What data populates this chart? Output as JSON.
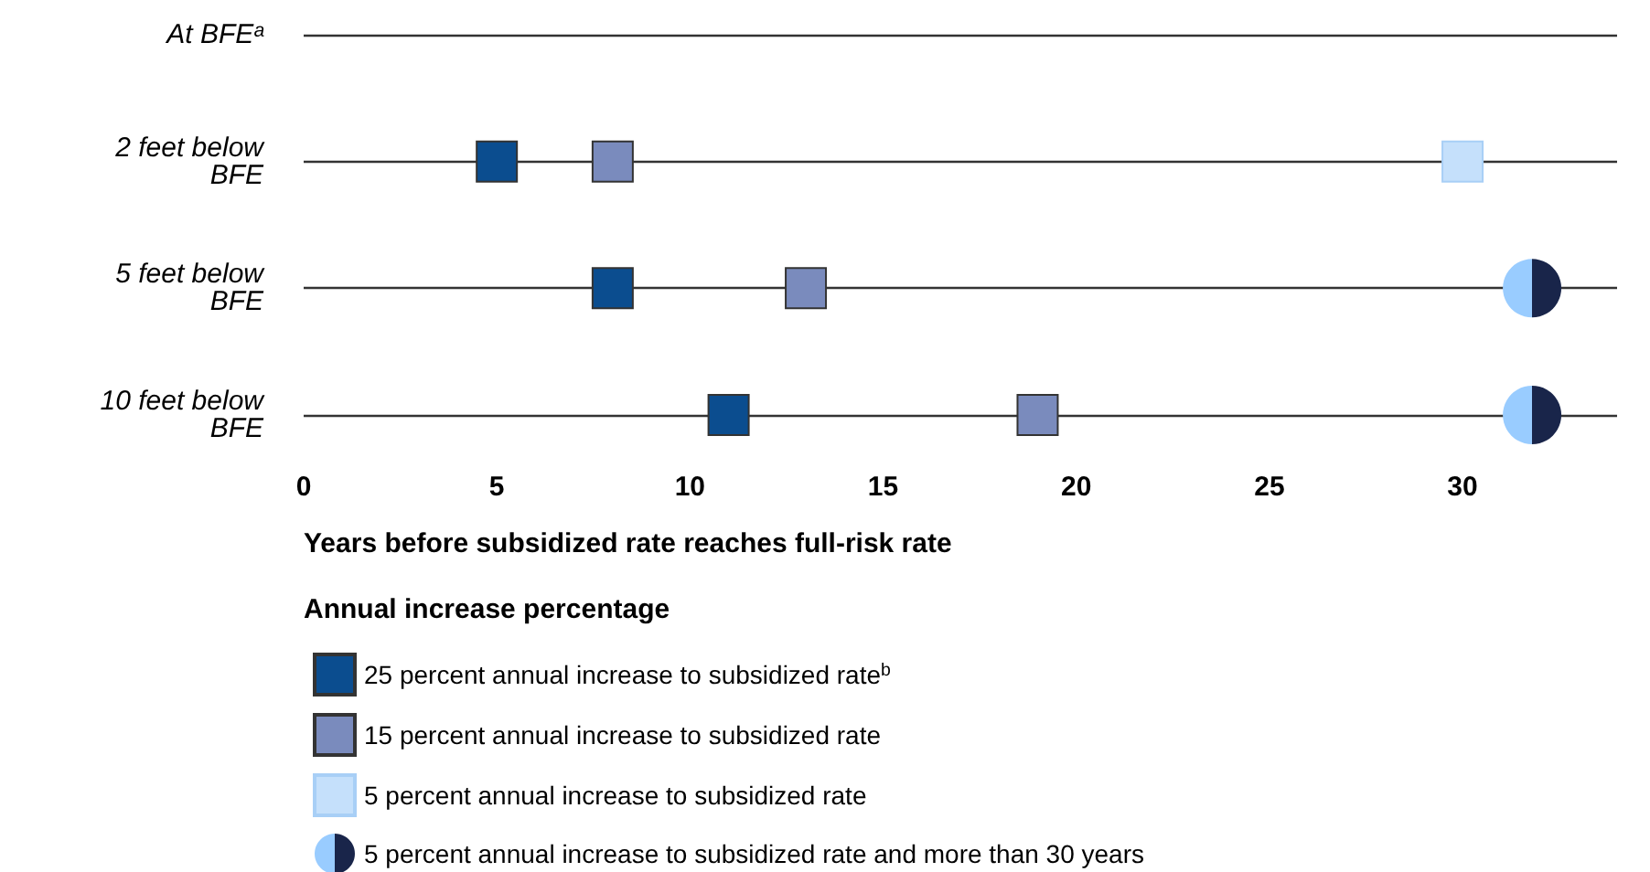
{
  "chart_data": {
    "type": "scatter",
    "xlabel": "Years before subsidized rate reaches full-risk rate",
    "legend_title": "Annual increase percentage",
    "categories": [
      "At BFEᵃ",
      "2 feet below BFE",
      "5 feet below BFE",
      "10 feet below BFE"
    ],
    "orientation": "horizontal",
    "xlim": [
      0,
      34
    ],
    "xticks": [
      0,
      5,
      10,
      15,
      20,
      25,
      30
    ],
    "grid": "y",
    "legend": "bottom",
    "marker": "square",
    "series": [
      {
        "name": "25 percent annual increase to subsidized rate$^{b}$",
        "color": "#0b4d8f",
        "values": [
          null,
          5,
          8,
          11
        ]
      },
      {
        "name": "15 percent annual increase to subsidized rate",
        "color": "#7a8bbd",
        "values": [
          null,
          8,
          13,
          19
        ]
      },
      {
        "name": "5 percent annual increase to subsidized rate",
        "color": "#c5e0fb",
        "values": [
          null,
          30,
          null,
          null
        ]
      },
      {
        "name": "5 percent annual increase to subsidized rate and more than 30 years",
        "color": "#19254a",
        "marker": "circle",
        "values": [
          null,
          null,
          31.8,
          31.8
        ]
      }
    ]
  }
}
